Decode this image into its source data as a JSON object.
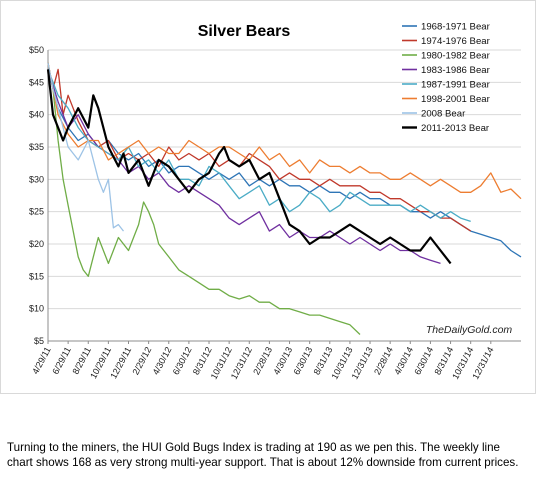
{
  "chart_data": {
    "type": "line",
    "title": "Silver Bears",
    "xlabel": "",
    "ylabel": "",
    "ylim": [
      5,
      50
    ],
    "xlim": [
      0,
      47
    ],
    "y_ticks": [
      "$5",
      "$10",
      "$15",
      "$20",
      "$25",
      "$30",
      "$35",
      "$40",
      "$45",
      "$50"
    ],
    "x_tick_labels": [
      "4/29/11",
      "6/29/11",
      "8/29/11",
      "10/29/11",
      "12/29/11",
      "2/29/12",
      "4/30/12",
      "6/30/12",
      "8/31/12",
      "10/31/12",
      "12/31/12",
      "2/28/13",
      "4/30/13",
      "6/30/13",
      "8/31/13",
      "10/31/13",
      "12/31/13",
      "2/28/14",
      "4/30/14",
      "6/30/14",
      "8/31/14",
      "10/31/14",
      "12/31/14"
    ],
    "x_tick_months": [
      0,
      2,
      4,
      6,
      8,
      10,
      12,
      14,
      16,
      18,
      20,
      22,
      24,
      26,
      28,
      30,
      32,
      34,
      36,
      38,
      40,
      42,
      44
    ],
    "grid": true,
    "legend_position": "top-right",
    "watermark": "TheDailyGold.com",
    "series": [
      {
        "name": "1968-1971 Bear",
        "color": "#2e75b6",
        "x": [
          0,
          0.5,
          1,
          2,
          3,
          4,
          5,
          6,
          7,
          8,
          9,
          10,
          11,
          12,
          13,
          14,
          15,
          16,
          17,
          18,
          19,
          20,
          21,
          22,
          23,
          24,
          25,
          26,
          27,
          28,
          29,
          30,
          31,
          32,
          33,
          34,
          35,
          36,
          37,
          38,
          39,
          40,
          41,
          42,
          43,
          44,
          45,
          46,
          47
        ],
        "y": [
          47,
          44,
          41,
          38,
          36,
          37,
          35,
          36,
          34,
          33,
          34,
          32,
          33,
          31,
          32,
          32,
          31,
          30,
          31,
          30,
          31,
          29,
          30,
          29,
          30,
          29,
          29,
          28,
          29,
          28,
          28,
          27,
          28,
          27,
          27,
          26,
          26,
          25,
          25,
          24,
          25,
          24,
          23,
          22,
          21.5,
          21,
          20.5,
          19,
          18
        ]
      },
      {
        "name": "1974-1976 Bear",
        "color": "#c0392b",
        "x": [
          0,
          0.5,
          1,
          1.5,
          2,
          3,
          4,
          5,
          6,
          7,
          8,
          9,
          10,
          11,
          12,
          13,
          14,
          15,
          16,
          17,
          18,
          19,
          20,
          21,
          22,
          23,
          24,
          25,
          26,
          27,
          28,
          29,
          30,
          31,
          32,
          33,
          34,
          35,
          36,
          37,
          38,
          39,
          40,
          41,
          42
        ],
        "y": [
          48,
          44,
          47,
          40,
          43,
          39,
          36,
          35,
          36,
          33,
          34,
          33,
          34,
          32,
          35,
          33,
          34,
          33,
          34,
          32,
          33,
          32,
          34,
          33,
          32,
          30,
          31,
          30,
          30,
          29,
          30,
          29,
          29,
          29,
          28,
          28,
          27,
          27,
          26,
          25,
          25,
          24,
          24,
          23,
          22
        ]
      },
      {
        "name": "1980-1982 Bear",
        "color": "#70ad47",
        "x": [
          0,
          0.5,
          1,
          1.5,
          2,
          2.5,
          3,
          3.5,
          4,
          5,
          6,
          7,
          8,
          9,
          9.5,
          10,
          10.5,
          11,
          12,
          13,
          14,
          15,
          16,
          17,
          18,
          19,
          20,
          21,
          22,
          23,
          24,
          25,
          26,
          27,
          28,
          29,
          30,
          31
        ],
        "y": [
          48,
          44,
          36,
          30,
          26,
          22,
          18,
          16,
          15,
          21,
          17,
          21,
          19,
          23,
          26.5,
          25,
          23,
          20,
          18,
          16,
          15,
          14,
          13,
          13,
          12,
          11.5,
          12,
          11,
          11,
          10,
          10,
          9.5,
          9,
          9,
          8.5,
          8,
          7.5,
          6
        ]
      },
      {
        "name": "1983-1986 Bear",
        "color": "#7030a0",
        "x": [
          0,
          1,
          2,
          3,
          4,
          5,
          6,
          7,
          8,
          9,
          10,
          11,
          12,
          13,
          14,
          15,
          16,
          17,
          18,
          19,
          20,
          21,
          22,
          23,
          24,
          25,
          26,
          27,
          28,
          29,
          30,
          31,
          32,
          33,
          34,
          35,
          36,
          37,
          38,
          39
        ],
        "y": [
          47,
          42,
          38,
          40,
          37,
          35,
          34,
          33,
          31,
          32,
          30,
          31,
          29,
          28,
          29,
          28,
          27,
          26,
          24,
          23,
          24,
          25,
          22,
          23,
          21,
          22,
          21,
          21,
          22,
          21,
          20,
          21,
          20,
          19,
          20,
          19,
          19,
          18,
          17.5,
          17
        ]
      },
      {
        "name": "1987-1991 Bear",
        "color": "#4bacc6",
        "x": [
          0,
          1,
          2,
          3,
          4,
          5,
          6,
          7,
          8,
          9,
          10,
          11,
          12,
          13,
          14,
          15,
          16,
          17,
          18,
          19,
          20,
          21,
          22,
          23,
          24,
          25,
          26,
          27,
          28,
          29,
          30,
          31,
          32,
          33,
          34,
          35,
          36,
          37,
          38,
          39,
          40,
          41,
          42
        ],
        "y": [
          47,
          43,
          41,
          38,
          36,
          35,
          34,
          33,
          35,
          32,
          33,
          31,
          33,
          30,
          30,
          29,
          32,
          31,
          29,
          27,
          28,
          29,
          26,
          27,
          25,
          26,
          28,
          27,
          25,
          26,
          28,
          27,
          26,
          26,
          26,
          26,
          25,
          26,
          25,
          24,
          25,
          24,
          23.5
        ]
      },
      {
        "name": "1998-2001 Bear",
        "color": "#ed7d31",
        "x": [
          0,
          1,
          2,
          3,
          4,
          5,
          6,
          7,
          8,
          9,
          10,
          11,
          12,
          13,
          14,
          15,
          16,
          17,
          18,
          19,
          20,
          21,
          22,
          23,
          24,
          25,
          26,
          27,
          28,
          29,
          30,
          31,
          32,
          33,
          34,
          35,
          36,
          37,
          38,
          39,
          40,
          41,
          42,
          43,
          44,
          45,
          46,
          47
        ],
        "y": [
          48,
          40,
          37,
          35,
          36,
          36,
          33,
          34,
          35,
          36,
          34,
          35,
          34,
          34,
          36,
          35,
          34,
          35,
          35,
          34,
          33,
          35,
          33,
          34,
          32,
          33,
          31,
          33,
          32,
          32,
          31,
          32,
          31,
          31,
          30,
          30,
          31,
          30,
          29,
          30,
          29,
          28,
          28,
          29,
          31,
          28,
          28.5,
          27
        ]
      },
      {
        "name": "2008 Bear",
        "color": "#9dc3e6",
        "x": [
          0,
          0.5,
          1,
          1.5,
          2,
          3,
          4,
          5,
          5.5,
          6,
          6.5,
          7,
          7.5
        ],
        "y": [
          48,
          44,
          41,
          38,
          35,
          33,
          36,
          30,
          28,
          30,
          22.5,
          23,
          22
        ]
      },
      {
        "name": "2011-2013 Bear",
        "color": "#000000",
        "x": [
          0,
          0.5,
          1,
          1.5,
          2,
          3,
          4,
          4.5,
          5,
          6,
          7,
          7.5,
          8,
          9,
          10,
          11,
          12,
          13,
          14,
          15,
          16,
          17,
          17.5,
          18,
          19,
          20,
          21,
          22,
          23,
          24,
          25,
          26,
          27,
          28,
          29,
          30,
          31,
          32,
          33,
          34,
          35,
          36,
          37,
          38,
          39,
          40
        ],
        "y": [
          47,
          40,
          38,
          36,
          38,
          41,
          38,
          43,
          41,
          35,
          32,
          34,
          31,
          33,
          29,
          33,
          32,
          30,
          28,
          30,
          31,
          34,
          35,
          33,
          32,
          33,
          30,
          31,
          27,
          23,
          22,
          20,
          21,
          21,
          22,
          23,
          22,
          21,
          20,
          21,
          20,
          19,
          19,
          21,
          19,
          17
        ]
      }
    ]
  },
  "caption": "Turning to the miners, the HUI Gold Bugs Index is trading at 190 as we pen this. The weekly line chart shows 168 as very strong multi-year support. That is about 12% downside from current prices."
}
